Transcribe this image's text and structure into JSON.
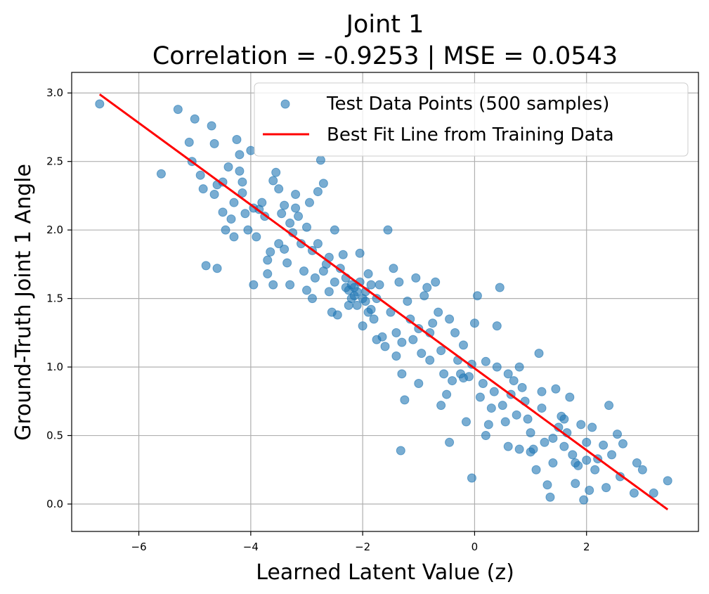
{
  "chart_data": {
    "type": "scatter",
    "title": "Joint 1",
    "subtitle": "Correlation = -0.9253 | MSE = 0.0543",
    "xlabel": "Learned Latent Value (z)",
    "ylabel": "Ground-Truth Joint 1 Angle",
    "xlim": [
      -7.2,
      4.0
    ],
    "ylim": [
      -0.2,
      3.15
    ],
    "xticks": [
      -6,
      -4,
      -2,
      0,
      2
    ],
    "xtick_labels": [
      "−6",
      "−4",
      "−2",
      "0",
      "2"
    ],
    "yticks": [
      0.0,
      0.5,
      1.0,
      1.5,
      2.0,
      2.5,
      3.0
    ],
    "ytick_labels": [
      "0.0",
      "0.5",
      "1.0",
      "1.5",
      "2.0",
      "2.5",
      "3.0"
    ],
    "grid": true,
    "legend_position": "top-right",
    "series": [
      {
        "name": "Test Data Points (500 samples)",
        "kind": "scatter",
        "color": "#1f77b4",
        "points": [
          [
            -6.7,
            2.92
          ],
          [
            -5.6,
            2.41
          ],
          [
            -5.3,
            2.88
          ],
          [
            -5.1,
            2.64
          ],
          [
            -5.0,
            2.81
          ],
          [
            -5.05,
            2.5
          ],
          [
            -4.9,
            2.4
          ],
          [
            -4.85,
            2.3
          ],
          [
            -4.7,
            2.76
          ],
          [
            -4.65,
            2.63
          ],
          [
            -4.6,
            2.33
          ],
          [
            -4.65,
            2.26
          ],
          [
            -4.5,
            2.35
          ],
          [
            -4.5,
            2.13
          ],
          [
            -4.45,
            2.0
          ],
          [
            -4.4,
            2.46
          ],
          [
            -4.35,
            2.08
          ],
          [
            -4.3,
            2.2
          ],
          [
            -4.25,
            2.66
          ],
          [
            -4.2,
            2.55
          ],
          [
            -4.2,
            2.43
          ],
          [
            -4.15,
            2.27
          ],
          [
            -4.1,
            2.12
          ],
          [
            -4.05,
            2.0
          ],
          [
            -4.0,
            2.58
          ],
          [
            -3.95,
            2.16
          ],
          [
            -3.9,
            1.95
          ],
          [
            -3.85,
            2.15
          ],
          [
            -3.8,
            2.2
          ],
          [
            -3.75,
            2.1
          ],
          [
            -3.7,
            1.78
          ],
          [
            -3.65,
            1.84
          ],
          [
            -3.6,
            2.36
          ],
          [
            -3.55,
            2.42
          ],
          [
            -3.5,
            2.3
          ],
          [
            -3.5,
            1.9
          ],
          [
            -3.45,
            2.12
          ],
          [
            -3.4,
            2.18
          ],
          [
            -3.4,
            1.86
          ],
          [
            -3.35,
            1.76
          ],
          [
            -3.3,
            2.05
          ],
          [
            -3.25,
            1.98
          ],
          [
            -3.2,
            2.26
          ],
          [
            -3.15,
            2.1
          ],
          [
            -3.1,
            1.9
          ],
          [
            -3.05,
            1.7
          ],
          [
            -3.0,
            1.56
          ],
          [
            -3.0,
            2.02
          ],
          [
            -2.95,
            2.2
          ],
          [
            -2.9,
            1.85
          ],
          [
            -2.85,
            1.65
          ],
          [
            -2.8,
            2.28
          ],
          [
            -2.8,
            1.9
          ],
          [
            -2.75,
            2.51
          ],
          [
            -2.7,
            2.34
          ],
          [
            -2.65,
            1.75
          ],
          [
            -2.6,
            1.55
          ],
          [
            -2.55,
            1.4
          ],
          [
            -2.5,
            1.62
          ],
          [
            -2.45,
            1.38
          ],
          [
            -2.4,
            1.72
          ],
          [
            -2.35,
            1.82
          ],
          [
            -2.3,
            1.65
          ],
          [
            -2.25,
            1.56
          ],
          [
            -2.2,
            1.5
          ],
          [
            -2.15,
            1.58
          ],
          [
            -2.1,
            1.45
          ],
          [
            -2.05,
            1.83
          ],
          [
            -2.0,
            1.3
          ],
          [
            -1.95,
            1.55
          ],
          [
            -1.9,
            1.68
          ],
          [
            -1.85,
            1.42
          ],
          [
            -1.8,
            1.35
          ],
          [
            -1.75,
            1.5
          ],
          [
            -1.7,
            1.6
          ],
          [
            -1.65,
            1.22
          ],
          [
            -1.6,
            1.15
          ],
          [
            -1.55,
            2.0
          ],
          [
            -1.5,
            1.4
          ],
          [
            -1.45,
            1.72
          ],
          [
            -1.4,
            1.25
          ],
          [
            -1.35,
            1.62
          ],
          [
            -1.3,
            1.18
          ],
          [
            -1.25,
            0.76
          ],
          [
            -1.2,
            1.48
          ],
          [
            -1.15,
            1.35
          ],
          [
            -1.1,
            1.2
          ],
          [
            -1.05,
            1.65
          ],
          [
            -1.0,
            1.28
          ],
          [
            -0.95,
            1.1
          ],
          [
            -0.9,
            1.52
          ],
          [
            -0.85,
            1.58
          ],
          [
            -0.8,
            1.05
          ],
          [
            -0.75,
            1.32
          ],
          [
            -0.7,
            1.62
          ],
          [
            -0.65,
            1.4
          ],
          [
            -0.6,
            1.12
          ],
          [
            -0.55,
            0.95
          ],
          [
            -0.5,
            0.8
          ],
          [
            -0.45,
            1.35
          ],
          [
            -0.4,
            0.9
          ],
          [
            -0.35,
            1.25
          ],
          [
            -0.3,
            1.05
          ],
          [
            -0.25,
            0.95
          ],
          [
            -0.2,
            1.16
          ],
          [
            -0.15,
            0.6
          ],
          [
            -0.1,
            0.93
          ],
          [
            -0.05,
            1.02
          ],
          [
            0.0,
            1.32
          ],
          [
            0.05,
            1.52
          ],
          [
            0.1,
            0.78
          ],
          [
            0.15,
            0.88
          ],
          [
            0.2,
            1.04
          ],
          [
            0.25,
            0.58
          ],
          [
            0.3,
            0.7
          ],
          [
            0.35,
            0.82
          ],
          [
            0.4,
            1.0
          ],
          [
            0.45,
            1.58
          ],
          [
            0.5,
            0.72
          ],
          [
            0.55,
            0.6
          ],
          [
            0.6,
            0.95
          ],
          [
            0.65,
            0.8
          ],
          [
            0.7,
            0.9
          ],
          [
            0.75,
            0.65
          ],
          [
            0.8,
            0.4
          ],
          [
            0.85,
            0.85
          ],
          [
            0.9,
            0.75
          ],
          [
            0.95,
            0.62
          ],
          [
            1.0,
            0.52
          ],
          [
            1.05,
            0.4
          ],
          [
            1.1,
            0.25
          ],
          [
            1.15,
            1.1
          ],
          [
            1.2,
            0.7
          ],
          [
            1.25,
            0.45
          ],
          [
            1.3,
            0.14
          ],
          [
            1.35,
            0.05
          ],
          [
            1.4,
            0.3
          ],
          [
            1.45,
            0.84
          ],
          [
            1.5,
            0.56
          ],
          [
            1.55,
            0.64
          ],
          [
            1.6,
            0.42
          ],
          [
            1.65,
            0.52
          ],
          [
            1.7,
            0.78
          ],
          [
            1.75,
            0.36
          ],
          [
            1.8,
            0.15
          ],
          [
            1.85,
            0.28
          ],
          [
            1.9,
            0.58
          ],
          [
            1.95,
            0.03
          ],
          [
            2.0,
            0.45
          ],
          [
            2.05,
            0.1
          ],
          [
            2.1,
            0.56
          ],
          [
            2.15,
            0.25
          ],
          [
            2.2,
            0.33
          ],
          [
            2.3,
            0.43
          ],
          [
            2.35,
            0.12
          ],
          [
            2.4,
            0.72
          ],
          [
            2.45,
            0.36
          ],
          [
            2.55,
            0.51
          ],
          [
            2.6,
            0.2
          ],
          [
            2.65,
            0.44
          ],
          [
            2.85,
            0.08
          ],
          [
            2.9,
            0.3
          ],
          [
            3.0,
            0.25
          ],
          [
            3.2,
            0.08
          ],
          [
            3.45,
            0.17
          ],
          [
            -4.8,
            1.74
          ],
          [
            -4.6,
            1.72
          ],
          [
            -1.32,
            0.39
          ],
          [
            -0.45,
            0.45
          ],
          [
            -0.05,
            0.19
          ],
          [
            -2.2,
            1.6
          ],
          [
            -2.1,
            1.55
          ],
          [
            -2.0,
            1.5
          ],
          [
            -2.15,
            1.52
          ],
          [
            -2.05,
            1.62
          ],
          [
            -1.95,
            1.48
          ],
          [
            -2.25,
            1.45
          ],
          [
            -2.3,
            1.58
          ],
          [
            -1.9,
            1.4
          ],
          [
            -1.85,
            1.6
          ],
          [
            -3.3,
            1.6
          ],
          [
            -3.6,
            1.6
          ],
          [
            -3.7,
            1.68
          ],
          [
            -2.6,
            1.8
          ],
          [
            -2.7,
            1.7
          ],
          [
            -2.9,
            1.5
          ],
          [
            -1.4,
            1.08
          ],
          [
            -1.0,
            0.88
          ],
          [
            -0.6,
            0.72
          ],
          [
            -0.2,
            0.92
          ],
          [
            0.2,
            0.5
          ],
          [
            0.6,
            0.42
          ],
          [
            1.0,
            0.38
          ],
          [
            1.4,
            0.48
          ],
          [
            1.8,
            0.3
          ],
          [
            -3.95,
            1.6
          ],
          [
            -4.3,
            1.95
          ],
          [
            -4.15,
            2.35
          ],
          [
            -3.2,
            2.16
          ],
          [
            -2.5,
            2.0
          ],
          [
            -1.75,
            1.2
          ],
          [
            -1.3,
            0.95
          ],
          [
            -0.8,
            1.25
          ],
          [
            0.4,
            1.3
          ],
          [
            0.8,
            1.0
          ],
          [
            1.2,
            0.82
          ],
          [
            1.6,
            0.62
          ],
          [
            2.0,
            0.32
          ]
        ]
      },
      {
        "name": "Best Fit Line from Training Data",
        "kind": "line",
        "color": "#ff0000",
        "points": [
          [
            -6.7,
            2.99
          ],
          [
            3.45,
            -0.04
          ]
        ]
      }
    ]
  }
}
